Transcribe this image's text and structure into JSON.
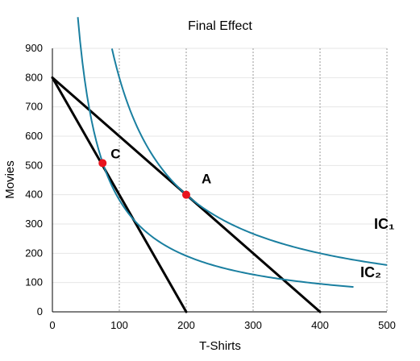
{
  "chart_data": {
    "type": "line",
    "title": "Final Effect",
    "xlabel": "T-Shirts",
    "ylabel": "Movies",
    "xlim": [
      0,
      500
    ],
    "ylim": [
      0,
      900
    ],
    "x_ticks": [
      "0",
      "100",
      "200",
      "300",
      "400",
      "500"
    ],
    "y_ticks": [
      "0",
      "100",
      "200",
      "300",
      "400",
      "500",
      "600",
      "700",
      "800",
      "900"
    ],
    "grid": "vertical dotted",
    "lines": [
      {
        "x": [
          0,
          200
        ],
        "y": [
          800,
          0
        ],
        "color": "#000000"
      },
      {
        "x": [
          0,
          400
        ],
        "y": [
          800,
          0
        ],
        "color": "#000000"
      }
    ],
    "curves": [
      {
        "name": "IC₁",
        "k": 80000,
        "x_range": [
          89,
          500
        ],
        "color": "#1a7fa0"
      },
      {
        "name": "IC₂",
        "k": 38250,
        "x_range": [
          38,
          450
        ],
        "color": "#1a7fa0"
      }
    ],
    "points": [
      {
        "label": "C",
        "x": 75,
        "y": 508,
        "color": "#e8141e"
      },
      {
        "label": "A",
        "x": 200,
        "y": 400,
        "color": "#e8141e"
      }
    ],
    "curve_labels": {
      "ic1": "IC₁",
      "ic2": "IC₂"
    }
  }
}
